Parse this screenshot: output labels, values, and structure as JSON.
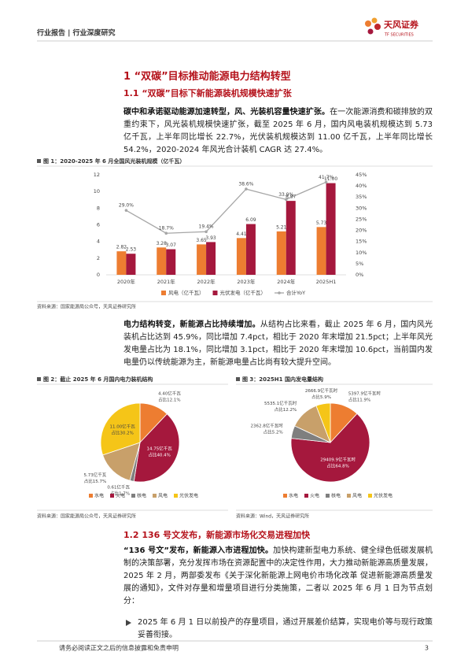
{
  "header": {
    "title": "行业报告 | 行业深度研究",
    "logo_name": "天风证券",
    "logo_english": "TF SECURITIES"
  },
  "headings": [
    "1 “双碳”目标推动能源电力结构转型",
    "1.1 “双碳”目标下新能源装机规模快速扩张",
    "1.2 136 号文发布，新能源市场化交易进程加快"
  ],
  "paragraphs": [
    {
      "lead": "碳中和承诺驱动能源加速转型，风、光装机容量快速扩张。",
      "text": "在一次能源消费和碳排放的双重约束下，风光装机规模快速扩张，截至 2025 年 6 月，国内风电装机规模达到 5.73 亿千瓦，上半年同比增长 22.7%，光伏装机规模达到 11.00 亿千瓦，上半年同比增长 54.2%，2020-2024 年风光合计装机 CAGR 达 27.4%。"
    },
    {
      "lead": "电力结构转变，新能源占比持续增加。",
      "text": "从结构占比来看，截止 2025 年 6 月，国内风光装机占比达到 45.9%，同比增加 7.4pct，相比于 2020 年末增加 21.5pct；上半年风光发电量占比为 18.1%，同比增加 3.1pct，相比于 2020 年末增加 10.6pct，当前国内发电量仍以传统能源为主，新能源电量占比尚有较大提升空间。"
    },
    {
      "lead": "“136 号文”发布，新能源入市进程加快。",
      "text": "加快构建新型电力系统、健全绿色低碳发展机制的决策部署，充分发挥市场在资源配置中的决定性作用，大力推动新能源高质量发展，2025 年 2 月，两部委发布《关于深化新能源上网电价市场化改革 促进新能源高质量发展的通知》，文件对存量和增量项目进行分类施策，二者以 2025 年 6 月 1 日为节点划分："
    }
  ],
  "bullets": [
    "2025 年 6 月 1 日以前投产的存量项目，通过开展差价结算，实现电价等与现行政策妥善衔接。"
  ],
  "chart_data": [
    {
      "type": "bar",
      "title": "图 1：2020-2025 年 6 月全国风光装机规模（亿千瓦）",
      "source": "资料来源：国家能源局公众号，天风证券研究所",
      "categories": [
        "2020年",
        "2021年",
        "2022年",
        "2023年",
        "2024年",
        "2025H1"
      ],
      "series": [
        {
          "name": "风电（亿千瓦）",
          "color": "#ed7d31",
          "values": [
            2.82,
            3.28,
            3.65,
            4.41,
            5.21,
            5.73
          ]
        },
        {
          "name": "光伏发电（亿千瓦）",
          "color": "#a5183d",
          "values": [
            2.53,
            3.07,
            3.93,
            6.09,
            8.87,
            11.0
          ],
          "value_labels": [
            "2.53",
            "3.07",
            "3.93",
            "6.09",
            "8.87",
            "11.00"
          ]
        },
        {
          "name": "合计YoY",
          "type": "line",
          "axis": "y2",
          "color": "#a6a6a6",
          "values": [
            29.0,
            18.7,
            19.4,
            38.6,
            33.9,
            41.7
          ],
          "value_labels": [
            "29.0%",
            "18.7%",
            "19.4%",
            "38.6%",
            "33.9%",
            "41.7%"
          ]
        }
      ],
      "ylim": [
        0,
        12
      ],
      "yticks": [
        0,
        2,
        4,
        6,
        8,
        10,
        12
      ],
      "y2lim": [
        0,
        45
      ],
      "y2ticks": [
        {
          "value": 0,
          "label": "0%"
        },
        {
          "value": 5,
          "label": "5%"
        },
        {
          "value": 10,
          "label": "10%"
        },
        {
          "value": 15,
          "label": "15%"
        },
        {
          "value": 20,
          "label": "20%"
        },
        {
          "value": 25,
          "label": "25%"
        },
        {
          "value": 30,
          "label": "30%"
        },
        {
          "value": 35,
          "label": "35%"
        },
        {
          "value": 40,
          "label": "40%"
        },
        {
          "value": 45,
          "label": "45%"
        }
      ]
    },
    {
      "type": "pie",
      "title": "图 2：截止 2025 年 6 月国内电力装机结构",
      "source": "资料来源：国家能源局公众号，天风证券研究所",
      "categories": [
        "水电",
        "火电",
        "核电",
        "风电",
        "光伏发电"
      ],
      "colors": [
        "#ed7d31",
        "#a5183d",
        "#7f7f7f",
        "#c8a06a",
        "#f5c518"
      ],
      "values": [
        4.4,
        14.75,
        0.61,
        5.73,
        11.0
      ],
      "value_labels": [
        "4.40亿千瓦",
        "14.75亿千瓦",
        "0.61亿千瓦",
        "5.73亿千瓦",
        "11.00亿千瓦"
      ],
      "shares": [
        12.1,
        40.4,
        1.7,
        15.7,
        30.2
      ],
      "share_labels": [
        "占比12.1%",
        "占比40.4%",
        "占比1.7%",
        "占比15.7%",
        "占比30.2%"
      ]
    },
    {
      "type": "pie",
      "title": "图 3：2025H1 国内发电量结构",
      "source": "资料来源：Wind，天风证券研究所",
      "categories": [
        "水电",
        "火电",
        "核电",
        "风电",
        "光伏发电"
      ],
      "colors": [
        "#ed7d31",
        "#a5183d",
        "#7f7f7f",
        "#c8a06a",
        "#f5c518"
      ],
      "values": [
        5397.9,
        29409.9,
        2362.8,
        5535.1,
        2666.9
      ],
      "value_labels": [
        "5397.9亿千瓦时",
        "29409.9亿千瓦时",
        "2362.8亿千瓦时",
        "5535.1亿千瓦时",
        "2666.9亿千瓦时"
      ],
      "shares": [
        11.9,
        64.8,
        5.2,
        12.2,
        5.9
      ],
      "share_labels": [
        "占比11.9%",
        "占比64.8%",
        "占比5.2%",
        "占比12.2%",
        "占比5.9%"
      ]
    }
  ],
  "footer": {
    "disclaimer": "请务必阅读正文之后的信息披露和免责申明",
    "page_number": 3
  }
}
